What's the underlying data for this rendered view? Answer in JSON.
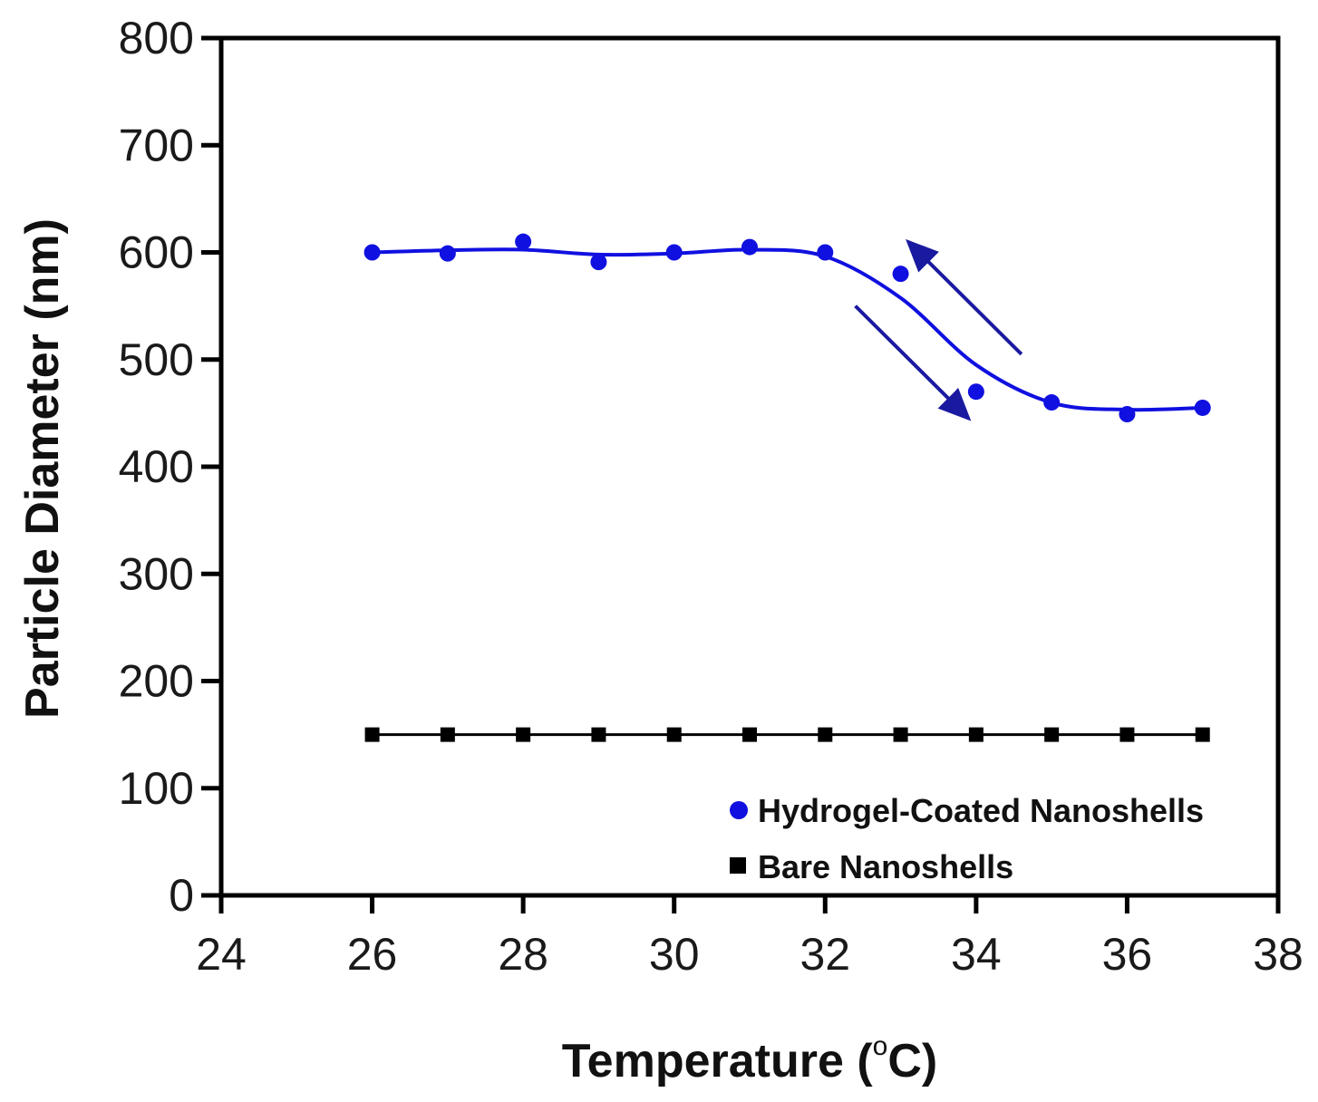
{
  "chart_data": {
    "type": "line",
    "title": "",
    "xlabel": "Temperature (°C)",
    "xlabel_parts": {
      "main": "Temperature (",
      "degree": "o",
      "unit": "C)"
    },
    "ylabel": "Particle Diameter (nm)",
    "xlim": [
      24,
      38
    ],
    "ylim": [
      0,
      800
    ],
    "xticks": [
      24,
      26,
      28,
      30,
      32,
      34,
      36,
      38
    ],
    "yticks": [
      0,
      100,
      200,
      300,
      400,
      500,
      600,
      700,
      800
    ],
    "grid": false,
    "legend_position": "bottom-right",
    "series": [
      {
        "name": "Hydrogel-Coated Nanoshells",
        "color": "#1010e0",
        "marker": "circle",
        "line": "smooth",
        "x": [
          26,
          27,
          28,
          29,
          30,
          31,
          32,
          33,
          34,
          35,
          36,
          37
        ],
        "values": [
          600,
          599,
          610,
          591,
          600,
          605,
          600,
          580,
          470,
          460,
          449,
          455
        ]
      },
      {
        "name": "Bare Nanoshells",
        "color": "#000000",
        "marker": "square",
        "line": "straight",
        "x": [
          26,
          27,
          28,
          29,
          30,
          31,
          32,
          33,
          34,
          35,
          36,
          37
        ],
        "values": [
          150,
          150,
          150,
          150,
          150,
          150,
          150,
          150,
          150,
          150,
          150,
          150
        ]
      }
    ],
    "annotations": [
      {
        "type": "arrow",
        "meaning": "heating",
        "from": [
          32.4,
          550
        ],
        "to": [
          33.9,
          445
        ],
        "color": "#1a1aa0"
      },
      {
        "type": "arrow",
        "meaning": "cooling",
        "from": [
          34.6,
          505
        ],
        "to": [
          33.1,
          610
        ],
        "color": "#1a1aa0"
      }
    ]
  }
}
